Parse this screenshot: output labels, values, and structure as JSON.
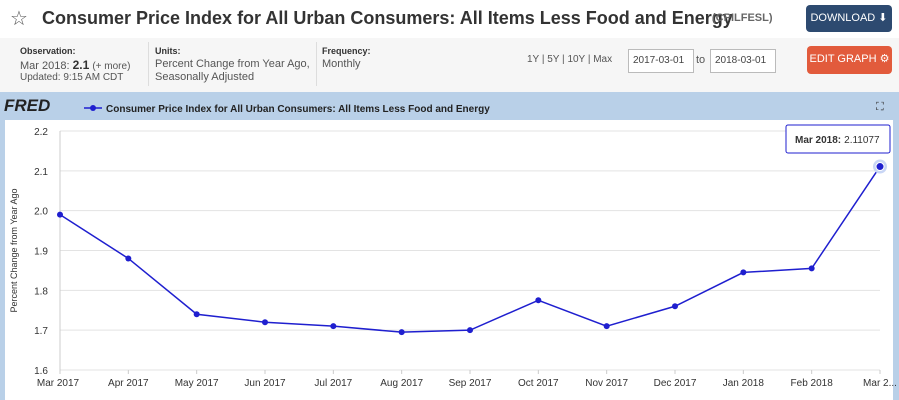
{
  "header": {
    "title": "Consumer Price Index for All Urban Consumers: All Items Less Food and Energy",
    "series_id": "(CPILFESL)",
    "download": "DOWNLOAD"
  },
  "info": {
    "observation_label": "Observation:",
    "observation_date": "Mar 2018:",
    "observation_value": 2.1,
    "more": "(+ more)",
    "updated": "Updated: 9:15 AM CDT",
    "units_label": "Units:",
    "units": [
      "Percent Change from Year Ago,",
      "Seasonally Adjusted"
    ],
    "frequency_label": "Frequency:",
    "frequency": "Monthly",
    "ranges": [
      "1Y",
      "5Y",
      "10Y",
      "Max"
    ],
    "start_date": "2017-03-01",
    "to": "to",
    "end_date": "2018-03-01",
    "edit": "EDIT GRAPH"
  },
  "chart_data": {
    "type": "line",
    "logo": "FRED",
    "y_label": "Percent Change from Year Ago",
    "categories": [
      "Mar 2017",
      "Apr 2017",
      "May 2017",
      "Jun 2017",
      "Jul 2017",
      "Aug 2017",
      "Sep 2017",
      "Oct 2017",
      "Nov 2017",
      "Dec 2017",
      "Jan 2018",
      "Feb 2018",
      "Mar 2..."
    ],
    "series": [
      {
        "name": "Consumer Price Index for All Urban Consumers: All Items Less Food and Energy",
        "color": "#1f1fcf",
        "values": [
          1.99,
          1.88,
          1.74,
          1.72,
          1.71,
          1.695,
          1.7,
          1.775,
          1.71,
          1.76,
          1.845,
          1.855,
          2.11077
        ]
      }
    ],
    "tooltip_label": "Mar 2018:",
    "ylim": [
      1.6,
      2.2
    ],
    "yticks": [
      1.6,
      1.7,
      1.8,
      1.9,
      {
        "value": 2,
        "label": "2.0"
      },
      2.1,
      2.2
    ],
    "grid": true
  }
}
